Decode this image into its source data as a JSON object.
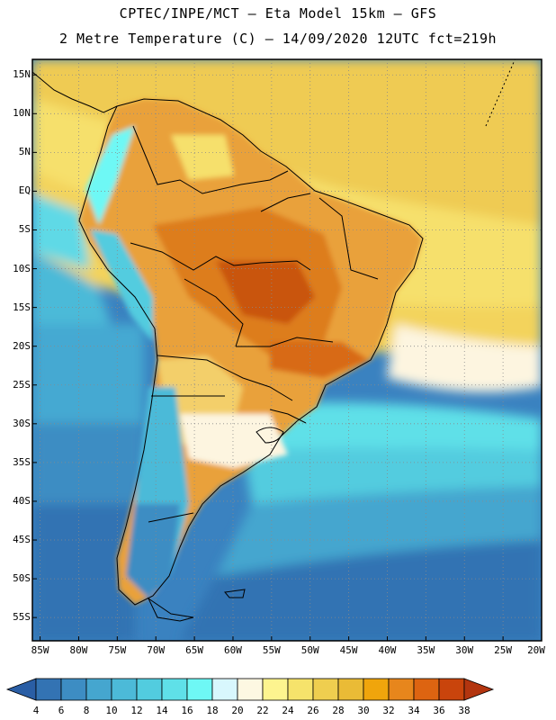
{
  "header": {
    "line1": "CPTEC/INPE/MCT –  Eta Model 15km – GFS",
    "line2": "2 Metre Temperature (C) – 14/09/2020 12UTC fct=219h"
  },
  "map": {
    "lat_labels": [
      "15N",
      "10N",
      "5N",
      "EQ",
      "5S",
      "10S",
      "15S",
      "20S",
      "25S",
      "30S",
      "35S",
      "40S",
      "45S",
      "50S",
      "55S"
    ],
    "lat_values": [
      15,
      10,
      5,
      0,
      -5,
      -10,
      -15,
      -20,
      -25,
      -30,
      -35,
      -40,
      -45,
      -50,
      -55
    ],
    "lon_labels": [
      "85W",
      "80W",
      "75W",
      "70W",
      "65W",
      "60W",
      "55W",
      "50W",
      "45W",
      "40W",
      "35W",
      "30W",
      "25W",
      "20W"
    ],
    "lon_values": [
      -85,
      -80,
      -75,
      -70,
      -65,
      -60,
      -55,
      -50,
      -45,
      -40,
      -35,
      -30,
      -25,
      -20
    ],
    "lat_range": [
      -58,
      17
    ],
    "lon_range": [
      -86,
      -20
    ]
  },
  "colorbar": {
    "labels": [
      "4",
      "6",
      "8",
      "10",
      "12",
      "14",
      "16",
      "18",
      "20",
      "22",
      "24",
      "26",
      "28",
      "30",
      "32",
      "34",
      "36",
      "38"
    ],
    "colors": [
      "#2a5ea5",
      "#3373b3",
      "#3d8dc3",
      "#45a6cf",
      "#4cbad8",
      "#52ccdf",
      "#5fe0e8",
      "#6ef8f5",
      "#d8f7fd",
      "#fdf8e2",
      "#fdf48f",
      "#f6e36b",
      "#efce4f",
      "#eabb36",
      "#f0a50c",
      "#e7861c",
      "#dd6411",
      "#c9440c",
      "#b3350f"
    ]
  }
}
